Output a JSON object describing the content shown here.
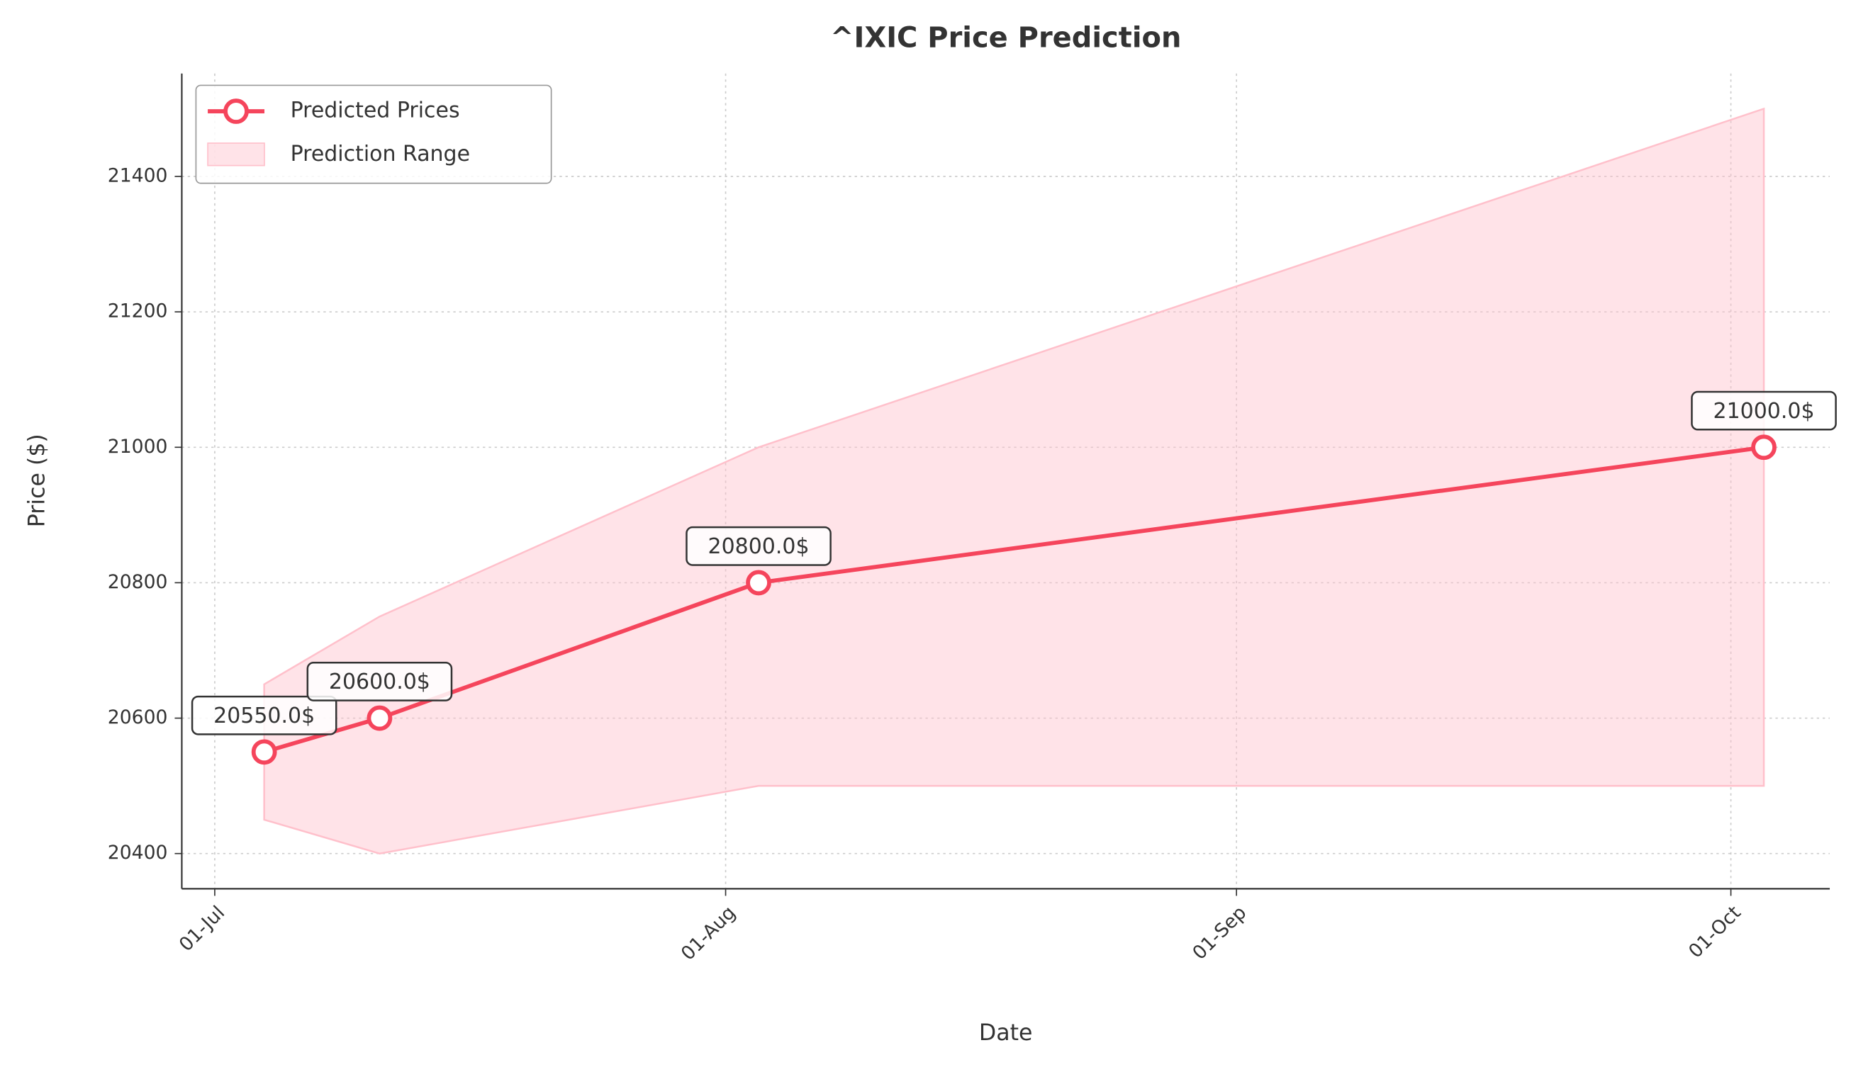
{
  "chart_data": {
    "type": "line",
    "title": "^IXIC Price Prediction",
    "x_label": "Date",
    "y_label": "Price ($)",
    "x": [
      "04-Jul",
      "11-Jul",
      "03-Aug",
      "03-Oct"
    ],
    "series": [
      {
        "name": "Predicted Prices",
        "color": "#f5455c",
        "values": [
          20550,
          20600,
          20800,
          21000
        ],
        "value_labels": [
          "20550.0$",
          "20600.0$",
          "20800.0$",
          "21000.0$"
        ]
      }
    ],
    "band": {
      "name": "Prediction Range",
      "color": "#ffc0cb",
      "lower": [
        20450,
        20400,
        20500,
        20500
      ],
      "upper": [
        20650,
        20750,
        21000,
        21500
      ]
    },
    "xlim": [
      "29-Jun",
      "07-Oct"
    ],
    "xticks": [
      "01-Jul",
      "01-Aug",
      "01-Sep",
      "01-Oct"
    ],
    "ylim": [
      20348,
      21552
    ],
    "yticks": [
      20400,
      20600,
      20800,
      21000,
      21200,
      21400
    ],
    "grid": true,
    "legend": "upper left"
  }
}
